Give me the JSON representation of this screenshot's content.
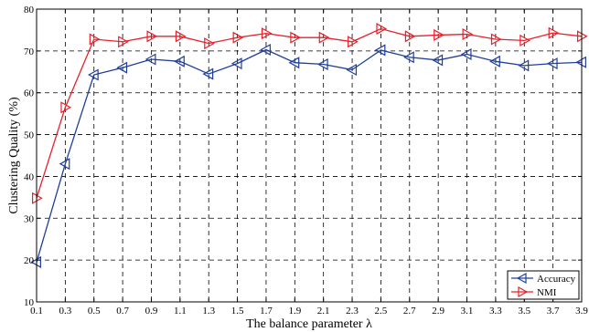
{
  "chart_data": {
    "type": "line",
    "title": "",
    "xlabel": "The balance parameter λ",
    "ylabel": "Clustering Quality (%)",
    "x": [
      0.1,
      0.3,
      0.5,
      0.7,
      0.9,
      1.1,
      1.3,
      1.5,
      1.7,
      1.9,
      2.1,
      2.3,
      2.5,
      2.7,
      2.9,
      3.1,
      3.3,
      3.5,
      3.7,
      3.9
    ],
    "x_tick_labels": [
      "0.1",
      "0.3",
      "0.5",
      "0.7",
      "0.9",
      "1.1",
      "1.3",
      "1.5",
      "1.7",
      "1.9",
      "2.1",
      "2.3",
      "2.5",
      "2.7",
      "2.9",
      "3.1",
      "3.3",
      "3.5",
      "3.7",
      "3.9"
    ],
    "xlim": [
      0.1,
      3.9
    ],
    "ylim": [
      10,
      80
    ],
    "y_ticks": [
      10,
      20,
      30,
      40,
      50,
      60,
      70,
      80
    ],
    "grid": true,
    "legend_position": "bottom-right",
    "series": [
      {
        "name": "Accuracy",
        "color": "#1f3f9a",
        "marker": "triangle-left",
        "values": [
          19.5,
          43,
          64.3,
          66,
          68,
          67.5,
          64.5,
          67,
          70.3,
          67.2,
          66.8,
          65.5,
          70.2,
          68.5,
          67.8,
          69.2,
          67.5,
          66.5,
          67,
          67.3
        ]
      },
      {
        "name": "NMI",
        "color": "#e8202a",
        "marker": "triangle-right",
        "values": [
          34.8,
          56.5,
          72.8,
          72.2,
          73.5,
          73.5,
          71.8,
          73.2,
          74.2,
          73.2,
          73.2,
          72.2,
          75.3,
          73.5,
          73.8,
          74.0,
          72.8,
          72.5,
          74.3,
          73.5
        ]
      }
    ]
  }
}
